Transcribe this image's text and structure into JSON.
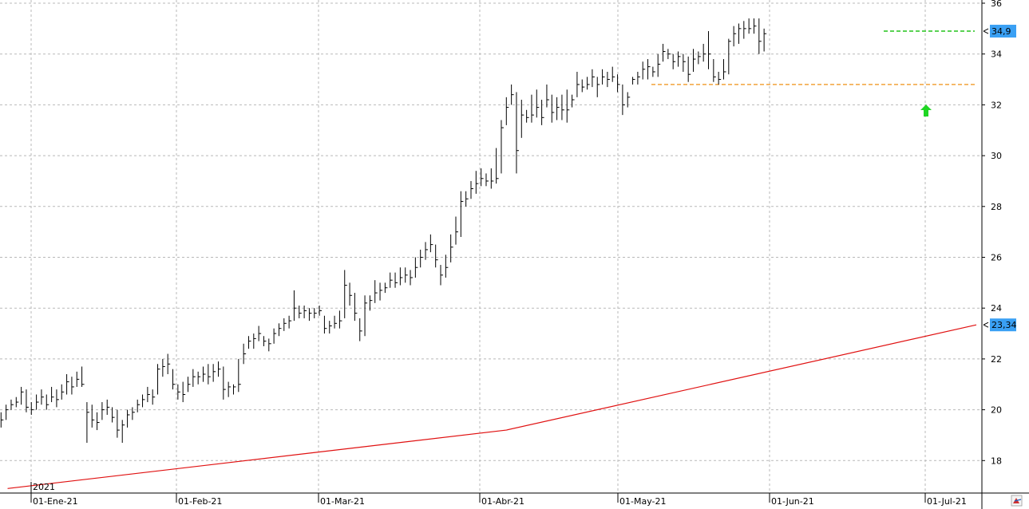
{
  "chart_data": {
    "type": "ohlc-bar",
    "y_ticks": [
      18,
      20,
      22,
      24,
      26,
      28,
      30,
      32,
      34,
      36
    ],
    "ylim": [
      16.9,
      36.1
    ],
    "x_labels": [
      "01-Ene-21",
      "01-Feb-21",
      "01-Mar-21",
      "01-Abr-21",
      "01-May-21",
      "01-Jun-21",
      "01-Jul-21"
    ],
    "year_label": "2021",
    "grid": true,
    "price_bars_daily_high_low_close": [
      [
        19.9,
        19.3,
        19.6
      ],
      [
        20.2,
        19.6,
        20.0
      ],
      [
        20.4,
        20.0,
        20.2
      ],
      [
        20.5,
        20.1,
        20.3
      ],
      [
        20.9,
        20.2,
        20.7
      ],
      [
        20.8,
        19.9,
        20.1
      ],
      [
        20.3,
        19.8,
        20.0
      ],
      [
        20.6,
        20.0,
        20.3
      ],
      [
        20.8,
        20.2,
        20.5
      ],
      [
        20.6,
        20.0,
        20.2
      ],
      [
        20.9,
        20.3,
        20.5
      ],
      [
        20.8,
        20.1,
        20.4
      ],
      [
        21.0,
        20.4,
        20.7
      ],
      [
        21.4,
        20.6,
        21.1
      ],
      [
        21.3,
        20.6,
        20.9
      ],
      [
        21.5,
        20.9,
        21.2
      ],
      [
        21.7,
        20.9,
        21.0
      ],
      [
        20.3,
        18.7,
        19.9
      ],
      [
        20.2,
        19.3,
        19.6
      ],
      [
        19.9,
        19.2,
        19.5
      ],
      [
        20.3,
        19.6,
        20.0
      ],
      [
        20.4,
        19.8,
        20.1
      ],
      [
        20.1,
        19.5,
        19.7
      ],
      [
        20.0,
        18.9,
        19.2
      ],
      [
        19.6,
        18.7,
        19.4
      ],
      [
        20.0,
        19.3,
        19.8
      ],
      [
        20.1,
        19.6,
        19.9
      ],
      [
        20.4,
        19.9,
        20.2
      ],
      [
        20.6,
        20.1,
        20.4
      ],
      [
        20.9,
        20.3,
        20.6
      ],
      [
        20.8,
        20.2,
        20.5
      ],
      [
        21.8,
        20.6,
        21.6
      ],
      [
        22.0,
        21.3,
        21.7
      ],
      [
        22.2,
        21.4,
        21.8
      ],
      [
        21.6,
        20.8,
        21.0
      ],
      [
        21.0,
        20.4,
        20.7
      ],
      [
        21.1,
        20.3,
        20.6
      ],
      [
        21.3,
        20.7,
        21.0
      ],
      [
        21.6,
        20.9,
        21.3
      ],
      [
        21.5,
        21.0,
        21.3
      ],
      [
        21.7,
        21.1,
        21.4
      ],
      [
        21.8,
        21.0,
        21.3
      ],
      [
        21.8,
        21.1,
        21.5
      ],
      [
        21.9,
        21.3,
        21.6
      ],
      [
        21.7,
        20.4,
        20.8
      ],
      [
        21.1,
        20.5,
        20.9
      ],
      [
        21.0,
        20.6,
        20.9
      ],
      [
        22.0,
        20.7,
        21.0
      ],
      [
        22.6,
        21.8,
        22.2
      ],
      [
        22.9,
        22.4,
        22.7
      ],
      [
        23.0,
        22.4,
        22.8
      ],
      [
        23.3,
        22.7,
        23.0
      ],
      [
        22.9,
        22.5,
        22.7
      ],
      [
        22.8,
        22.3,
        22.6
      ],
      [
        23.2,
        22.6,
        23.0
      ],
      [
        23.4,
        22.9,
        23.2
      ],
      [
        23.6,
        23.1,
        23.4
      ],
      [
        23.7,
        23.2,
        23.5
      ],
      [
        24.7,
        23.5,
        24.0
      ],
      [
        24.1,
        23.6,
        23.8
      ],
      [
        24.1,
        23.6,
        23.9
      ],
      [
        24.0,
        23.5,
        23.8
      ],
      [
        24.0,
        23.6,
        23.8
      ],
      [
        24.1,
        23.7,
        23.9
      ],
      [
        23.7,
        23.0,
        23.2
      ],
      [
        23.5,
        23.0,
        23.3
      ],
      [
        23.7,
        23.2,
        23.4
      ],
      [
        23.9,
        23.2,
        23.5
      ],
      [
        25.5,
        23.6,
        24.9
      ],
      [
        25.0,
        24.1,
        24.5
      ],
      [
        24.6,
        23.5,
        23.8
      ],
      [
        23.6,
        22.7,
        23.1
      ],
      [
        24.5,
        22.9,
        24.2
      ],
      [
        24.5,
        23.9,
        24.3
      ],
      [
        25.1,
        24.2,
        24.6
      ],
      [
        25.0,
        24.3,
        24.7
      ],
      [
        25.0,
        24.6,
        24.8
      ],
      [
        25.4,
        24.8,
        25.1
      ],
      [
        25.4,
        24.8,
        25.0
      ],
      [
        25.6,
        24.9,
        25.2
      ],
      [
        25.6,
        25.0,
        25.3
      ],
      [
        25.5,
        24.9,
        25.2
      ],
      [
        26.0,
        25.2,
        25.6
      ],
      [
        26.3,
        25.6,
        26.0
      ],
      [
        26.6,
        25.9,
        26.3
      ],
      [
        26.9,
        26.2,
        26.5
      ],
      [
        26.5,
        25.6,
        25.9
      ],
      [
        25.7,
        24.9,
        25.3
      ],
      [
        26.1,
        25.2,
        25.6
      ],
      [
        26.9,
        25.8,
        26.4
      ],
      [
        27.6,
        26.5,
        27.0
      ],
      [
        28.6,
        26.8,
        28.2
      ],
      [
        28.6,
        28.0,
        28.3
      ],
      [
        29.0,
        28.3,
        28.7
      ],
      [
        29.4,
        28.5,
        28.9
      ],
      [
        29.5,
        28.8,
        29.1
      ],
      [
        29.3,
        28.8,
        29.0
      ],
      [
        29.5,
        28.7,
        29.0
      ],
      [
        30.3,
        28.9,
        29.1
      ],
      [
        31.4,
        29.3,
        31.1
      ],
      [
        32.3,
        31.2,
        31.9
      ],
      [
        32.8,
        32.0,
        32.4
      ],
      [
        32.5,
        29.3,
        30.2
      ],
      [
        32.2,
        30.7,
        31.6
      ],
      [
        31.8,
        31.3,
        31.5
      ],
      [
        32.4,
        31.3,
        31.6
      ],
      [
        32.6,
        31.5,
        31.9
      ],
      [
        32.2,
        31.2,
        31.5
      ],
      [
        32.8,
        31.9,
        32.2
      ],
      [
        32.4,
        31.3,
        31.7
      ],
      [
        32.3,
        31.4,
        31.9
      ],
      [
        32.4,
        31.4,
        31.8
      ],
      [
        32.6,
        31.3,
        31.8
      ],
      [
        32.4,
        31.9,
        32.2
      ],
      [
        33.3,
        32.3,
        32.8
      ],
      [
        33.0,
        32.5,
        32.7
      ],
      [
        33.1,
        32.6,
        32.8
      ],
      [
        33.4,
        32.7,
        33.1
      ],
      [
        33.1,
        32.3,
        32.8
      ],
      [
        33.4,
        32.8,
        33.1
      ],
      [
        33.3,
        32.7,
        33.0
      ],
      [
        33.5,
        32.9,
        33.1
      ],
      [
        33.2,
        32.5,
        32.8
      ],
      [
        32.8,
        31.6,
        32.0
      ],
      [
        32.5,
        31.9,
        32.3
      ],
      [
        33.1,
        32.8,
        33.0
      ],
      [
        33.3,
        32.8,
        33.1
      ],
      [
        33.7,
        33.0,
        33.4
      ],
      [
        33.8,
        33.0,
        33.5
      ],
      [
        33.5,
        33.1,
        33.3
      ],
      [
        34.0,
        33.1,
        33.6
      ],
      [
        34.4,
        33.7,
        34.1
      ],
      [
        34.2,
        33.8,
        34.0
      ],
      [
        34.0,
        33.4,
        33.7
      ],
      [
        34.1,
        33.5,
        33.9
      ],
      [
        34.0,
        33.3,
        33.7
      ],
      [
        33.9,
        32.9,
        33.2
      ],
      [
        34.2,
        33.3,
        33.8
      ],
      [
        34.1,
        33.6,
        33.9
      ],
      [
        34.4,
        33.7,
        34.0
      ],
      [
        34.9,
        33.4,
        34.0
      ],
      [
        33.8,
        32.9,
        33.1
      ],
      [
        33.3,
        32.8,
        33.0
      ],
      [
        33.8,
        33.0,
        33.3
      ],
      [
        34.6,
        33.2,
        34.5
      ],
      [
        35.1,
        34.3,
        34.8
      ],
      [
        35.2,
        34.4,
        35.0
      ],
      [
        35.3,
        34.6,
        35.0
      ],
      [
        35.4,
        34.8,
        35.0
      ],
      [
        35.4,
        34.8,
        35.1
      ],
      [
        35.4,
        34.0,
        34.5
      ],
      [
        35.0,
        34.1,
        34.8
      ]
    ],
    "moving_average_red": [
      [
        1.3,
        16.9
      ],
      [
        100,
        19.2
      ],
      [
        193,
        23.34
      ]
    ],
    "resistance_line": {
      "value": 34.9,
      "color": "#22c41a",
      "label": "34,9"
    },
    "support_line": {
      "value": 32.8,
      "color": "#f2a23a"
    },
    "ma_tag": {
      "value": 23.34,
      "label": "23,34",
      "color": "#ff0000"
    },
    "signal_arrow": {
      "value": 31.7,
      "color": "#1fd623",
      "direction": "up"
    },
    "colors": {
      "bars": "#000000",
      "grid": "#b9b9b9",
      "tag_bg": "#3aa0f4",
      "ma": "#e01010"
    }
  }
}
